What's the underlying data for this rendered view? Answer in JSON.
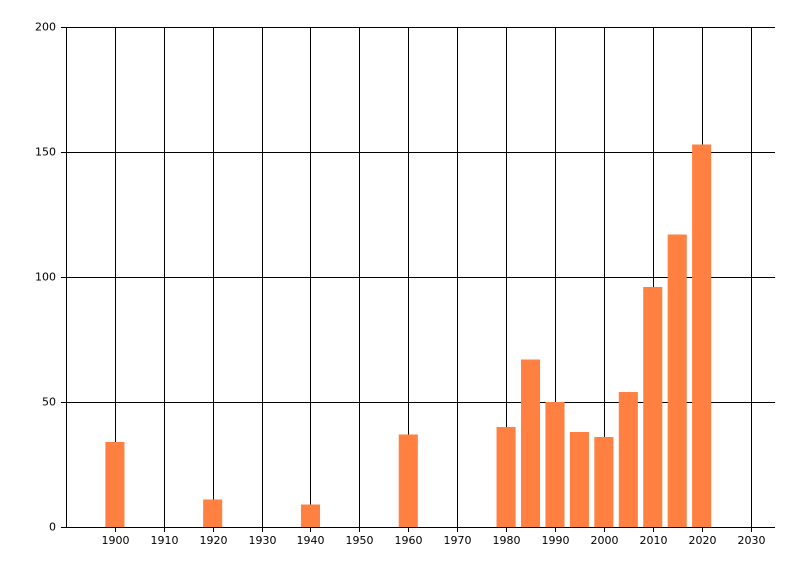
{
  "chart_data": {
    "type": "bar",
    "x": [
      1900,
      1920,
      1940,
      1960,
      1980,
      1985,
      1990,
      1995,
      2000,
      2005,
      2010,
      2015,
      2020
    ],
    "values": [
      34,
      11,
      9,
      37,
      40,
      67,
      50,
      38,
      36,
      54,
      96,
      117,
      153
    ],
    "color": "#ff8040",
    "xlim": [
      1890,
      2035
    ],
    "xticks": [
      1900,
      1910,
      1920,
      1930,
      1940,
      1950,
      1960,
      1970,
      1980,
      1990,
      2000,
      2010,
      2020,
      2030
    ],
    "ylim": [
      0,
      200
    ],
    "yticks": [
      0,
      50,
      100,
      150,
      200
    ],
    "grid": true
  }
}
